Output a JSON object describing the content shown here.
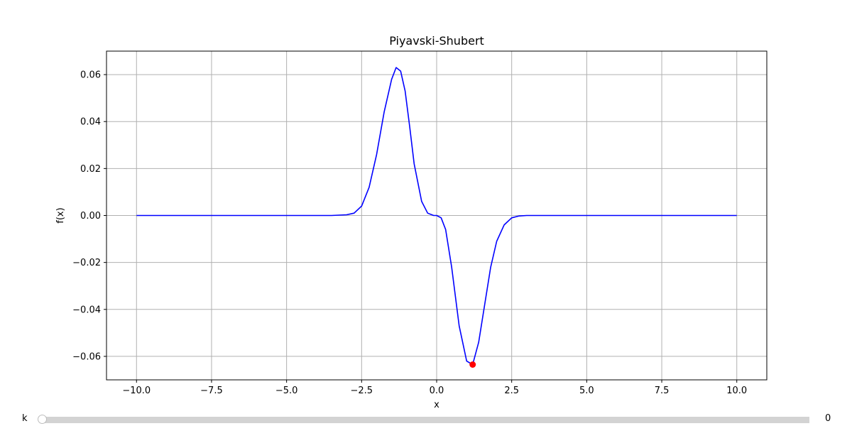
{
  "chart_data": {
    "type": "line",
    "title": "Piyavski-Shubert",
    "xlabel": "x",
    "ylabel": "f(x)",
    "xlim": [
      -11,
      11
    ],
    "ylim": [
      -0.07,
      0.07
    ],
    "grid": true,
    "x_ticks": [
      -10.0,
      -7.5,
      -5.0,
      -2.5,
      0.0,
      2.5,
      5.0,
      7.5,
      10.0
    ],
    "x_tick_labels": [
      "−10.0",
      "−7.5",
      "−5.0",
      "−2.5",
      "0.0",
      "2.5",
      "5.0",
      "7.5",
      "10.0"
    ],
    "y_ticks": [
      -0.06,
      -0.04,
      -0.02,
      0.0,
      0.02,
      0.04,
      0.06
    ],
    "y_tick_labels": [
      "−0.06",
      "−0.04",
      "−0.02",
      "0.00",
      "0.02",
      "0.04",
      "0.06"
    ],
    "series": [
      {
        "color": "#0000ff",
        "x": [
          -10.0,
          -3.5,
          -3.0,
          -2.75,
          -2.5,
          -2.25,
          -2.0,
          -1.75,
          -1.5,
          -1.35,
          -1.2,
          -1.05,
          -0.9,
          -0.75,
          -0.5,
          -0.3,
          -0.1,
          0.0,
          0.15,
          0.3,
          0.5,
          0.75,
          1.0,
          1.2,
          1.4,
          1.6,
          1.8,
          2.0,
          2.25,
          2.5,
          2.75,
          3.0,
          3.5,
          10.0
        ],
        "y": [
          0.0,
          0.0,
          0.0003,
          0.001,
          0.004,
          0.012,
          0.026,
          0.044,
          0.058,
          0.063,
          0.0615,
          0.053,
          0.038,
          0.022,
          0.006,
          0.001,
          0.0,
          0.0,
          -0.001,
          -0.006,
          -0.022,
          -0.047,
          -0.062,
          -0.0635,
          -0.054,
          -0.038,
          -0.022,
          -0.011,
          -0.004,
          -0.001,
          -0.0002,
          0.0,
          0.0,
          0.0
        ]
      }
    ],
    "markers": [
      {
        "x": 1.2,
        "y": -0.0635,
        "color": "#ff0000"
      }
    ]
  },
  "slider": {
    "label": "k",
    "value": "0",
    "fraction": 0.0
  }
}
